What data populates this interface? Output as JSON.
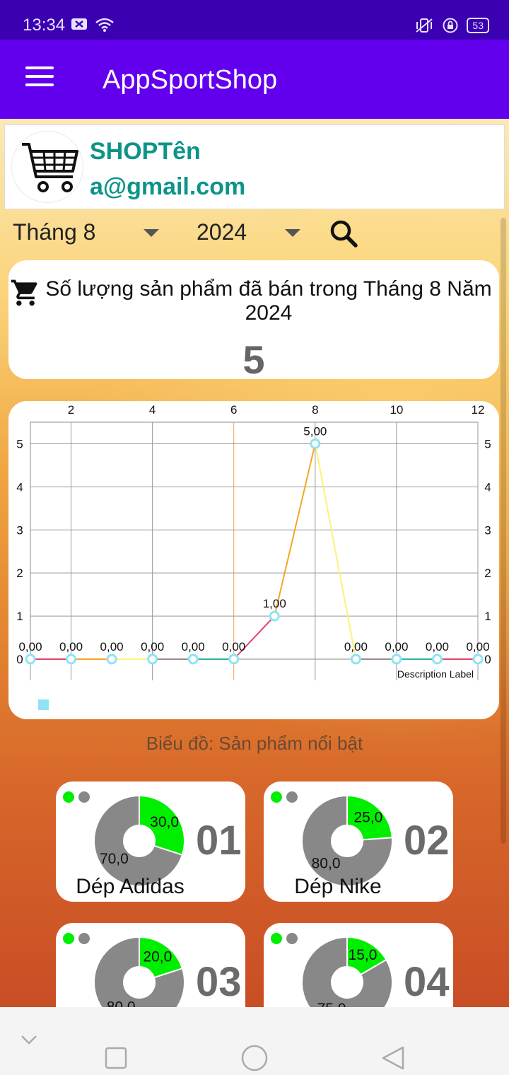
{
  "status_bar": {
    "time": "13:34",
    "battery": "53"
  },
  "app_bar": {
    "title": "AppSportShop"
  },
  "profile": {
    "shop_name": "SHOPTên",
    "email": "a@gmail.com"
  },
  "filters": {
    "month": "Tháng 8",
    "year": "2024"
  },
  "sold_summary": {
    "label": "Số lượng sản phẩm đã bán trong Tháng 8 Năm 2024",
    "value": "5"
  },
  "chart_data": {
    "type": "line",
    "x": [
      1,
      2,
      3,
      4,
      5,
      6,
      7,
      8,
      9,
      10,
      11,
      12
    ],
    "series": [
      {
        "values": [
          0,
          0,
          0,
          0,
          0,
          0,
          1,
          5,
          0,
          0,
          0,
          0
        ]
      }
    ],
    "value_labels": [
      "0,00",
      "0,00",
      "0,00",
      "0,00",
      "0,00",
      "0,00",
      "1,00",
      "5,00",
      "0,00",
      "0,00",
      "0,00",
      "0,00"
    ],
    "x_ticks": [
      "2",
      "4",
      "6",
      "8",
      "10",
      "12"
    ],
    "y_ticks": [
      "0",
      "1",
      "2",
      "3",
      "4",
      "5"
    ],
    "xlim": [
      1,
      12
    ],
    "ylim": [
      0,
      5.5
    ],
    "description_label": "Description Label",
    "grid": true,
    "line_colors": [
      "#e3426a",
      "#f5a623",
      "#fff176",
      "#9c8a8a",
      "#2db3a0"
    ]
  },
  "caption": "Biểu đồ: Sản phẩm nổi bật",
  "products": [
    {
      "rank": "01",
      "name": "Dép Adidas",
      "sold": 30,
      "rest": 70,
      "sold_label": "30,0",
      "rest_label": "70,0"
    },
    {
      "rank": "02",
      "name": "Dép Nike",
      "sold": 25,
      "rest": 80,
      "sold_label": "25,0",
      "rest_label": "80,0"
    },
    {
      "rank": "03",
      "name": "",
      "sold": 20,
      "rest": 80,
      "sold_label": "20,0",
      "rest_label": "80,0"
    },
    {
      "rank": "04",
      "name": "",
      "sold": 15,
      "rest": 75,
      "sold_label": "15,0",
      "rest_label": "75,0"
    }
  ],
  "colors": {
    "sold": "#00ee00",
    "rest": "#888888",
    "accent": "#6200ee",
    "brand_text": "#0d9488"
  },
  "icons": {
    "menu": "menu-icon",
    "cart": "cart-icon",
    "search": "search-icon",
    "dropdown": "chevron-down-icon"
  }
}
